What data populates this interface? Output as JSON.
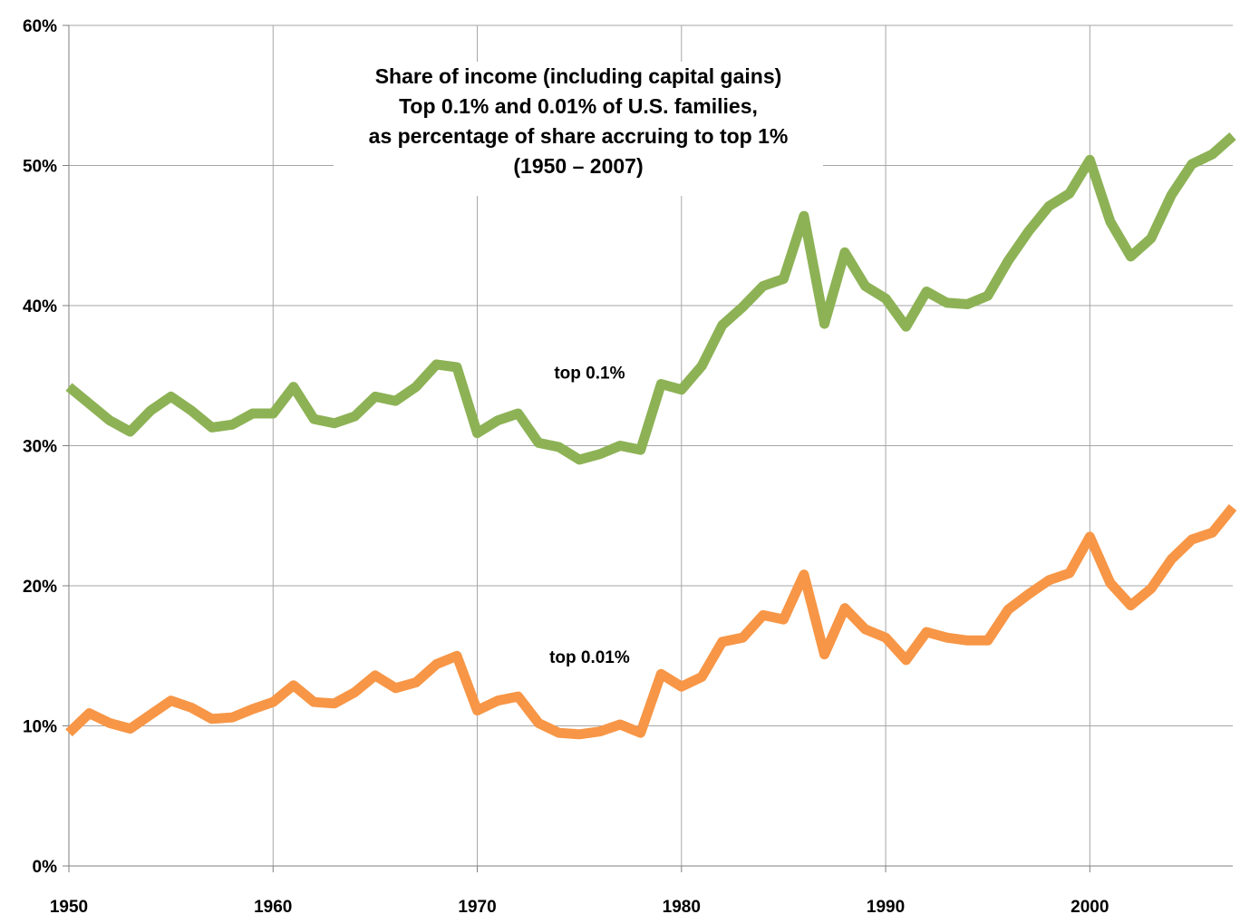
{
  "chart_data": {
    "type": "line",
    "title_lines": [
      "Share of income (including capital gains)",
      "Top 0.1% and 0.01% of U.S. families,",
      "as percentage of share accruing to top 1%",
      "(1950 – 2007)"
    ],
    "xlim": [
      1950,
      2007
    ],
    "ylim": [
      0,
      60
    ],
    "x_ticks": [
      1950,
      1960,
      1970,
      1980,
      1990,
      2000
    ],
    "y_ticks": [
      {
        "value": 0,
        "label": "0%"
      },
      {
        "value": 10,
        "label": "10%"
      },
      {
        "value": 20,
        "label": "20%"
      },
      {
        "value": 30,
        "label": "30%"
      },
      {
        "value": 40,
        "label": "40%"
      },
      {
        "value": 50,
        "label": "50%"
      },
      {
        "value": 60,
        "label": "60%"
      }
    ],
    "grid": true,
    "x": [
      1950,
      1951,
      1952,
      1953,
      1954,
      1955,
      1956,
      1957,
      1958,
      1959,
      1960,
      1961,
      1962,
      1963,
      1964,
      1965,
      1966,
      1967,
      1968,
      1969,
      1970,
      1971,
      1972,
      1973,
      1974,
      1975,
      1976,
      1977,
      1978,
      1979,
      1980,
      1981,
      1982,
      1983,
      1984,
      1985,
      1986,
      1987,
      1988,
      1989,
      1990,
      1991,
      1992,
      1993,
      1994,
      1995,
      1996,
      1997,
      1998,
      1999,
      2000,
      2001,
      2002,
      2003,
      2004,
      2005,
      2006,
      2007
    ],
    "series": [
      {
        "name": "top 0.1%",
        "color": "#8db255",
        "values": [
          34.2,
          33.0,
          31.8,
          31.0,
          32.5,
          33.5,
          32.5,
          31.3,
          31.5,
          32.3,
          32.3,
          34.2,
          31.9,
          31.6,
          32.1,
          33.5,
          33.2,
          34.2,
          35.8,
          35.6,
          30.9,
          31.8,
          32.3,
          30.2,
          29.9,
          29.0,
          29.4,
          30.0,
          29.7,
          34.4,
          34.0,
          35.7,
          38.6,
          39.9,
          41.4,
          41.9,
          46.4,
          38.7,
          43.8,
          41.4,
          40.5,
          38.5,
          41.0,
          40.2,
          40.1,
          40.7,
          43.2,
          45.3,
          47.1,
          48.0,
          50.4,
          46.0,
          43.5,
          44.8,
          47.9,
          50.1,
          50.8,
          52.1
        ]
      },
      {
        "name": "top 0.01%",
        "color": "#f79646",
        "values": [
          9.5,
          10.9,
          10.2,
          9.8,
          10.8,
          11.8,
          11.3,
          10.5,
          10.6,
          11.2,
          11.7,
          12.9,
          11.7,
          11.6,
          12.4,
          13.6,
          12.7,
          13.1,
          14.4,
          15.0,
          11.1,
          11.8,
          12.1,
          10.2,
          9.5,
          9.4,
          9.6,
          10.1,
          9.5,
          13.7,
          12.8,
          13.5,
          16.0,
          16.3,
          17.9,
          17.6,
          20.8,
          15.1,
          18.4,
          16.9,
          16.3,
          14.7,
          16.7,
          16.3,
          16.1,
          16.1,
          18.3,
          19.4,
          20.4,
          20.9,
          23.5,
          20.2,
          18.6,
          19.8,
          21.9,
          23.3,
          23.8,
          25.6
        ]
      }
    ],
    "series_labels": [
      {
        "text": "top 0.1%",
        "at_x": 1975.5,
        "at_y": 34.8
      },
      {
        "text": "top 0.01%",
        "at_x": 1975.5,
        "at_y": 14.5
      }
    ],
    "colors": {
      "grid": "#a6a6a6",
      "axis": "#7f7f7f"
    }
  }
}
